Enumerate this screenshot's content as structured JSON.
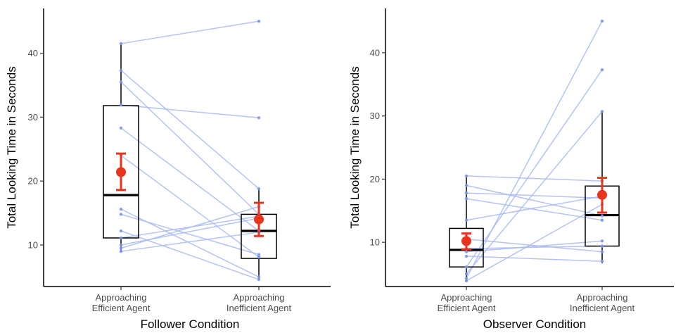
{
  "chart_data": [
    {
      "type": "box",
      "xlabel": "Follower Condition",
      "ylabel": "Total Looking Time in Seconds",
      "categories": [
        "Approaching\nEfficient Agent",
        "Approaching\nInefficient Agent"
      ],
      "ylim": [
        3.5,
        47
      ],
      "yticks": [
        10,
        20,
        30,
        40
      ],
      "grid": false,
      "boxes": [
        {
          "q1": 11.1,
          "median": 17.8,
          "q3": 31.8,
          "whisker_low": 8.9,
          "whisker_high": 41.5
        },
        {
          "q1": 7.9,
          "median": 12.2,
          "q3": 14.8,
          "whisker_low": 4.6,
          "whisker_high": 18.8
        }
      ],
      "means": [
        {
          "mean": 21.4,
          "ci_low": 18.6,
          "ci_high": 24.3
        },
        {
          "mean": 14.0,
          "ci_low": 11.4,
          "ci_high": 16.6
        }
      ],
      "paired_points": [
        [
          41.5,
          45.0
        ],
        [
          37.3,
          18.8
        ],
        [
          35.5,
          14.8
        ],
        [
          31.9,
          29.9
        ],
        [
          28.3,
          12.2
        ],
        [
          24.0,
          8.1
        ],
        [
          15.6,
          5.0
        ],
        [
          14.8,
          8.5
        ],
        [
          12.2,
          4.6
        ],
        [
          11.1,
          14.5
        ],
        [
          10.0,
          14.2
        ],
        [
          9.5,
          16.0
        ],
        [
          9.0,
          12.0
        ]
      ],
      "colors": {
        "lines": "#a7b9f4",
        "points": "#7c95ee",
        "mean": "#e8341c",
        "box": "#000000"
      }
    },
    {
      "type": "box",
      "xlabel": "Observer Condition",
      "ylabel": "Total Looking Time in Seconds",
      "categories": [
        "Approaching\nEfficient Agent",
        "Approaching\nInefficient Agent"
      ],
      "ylim": [
        3,
        47
      ],
      "yticks": [
        10,
        20,
        30,
        40
      ],
      "grid": false,
      "boxes": [
        {
          "q1": 6.1,
          "median": 8.8,
          "q3": 12.2,
          "whisker_low": 3.9,
          "whisker_high": 20.5
        },
        {
          "q1": 9.4,
          "median": 14.3,
          "q3": 18.9,
          "whisker_low": 6.7,
          "whisker_high": 30.7
        }
      ],
      "means": [
        {
          "mean": 10.2,
          "ci_low": 8.9,
          "ci_high": 11.4
        },
        {
          "mean": 17.5,
          "ci_low": 14.7,
          "ci_high": 20.2
        }
      ],
      "paired_points": [
        [
          20.5,
          19.7
        ],
        [
          19.0,
          14.2
        ],
        [
          17.8,
          17.0
        ],
        [
          16.9,
          13.5
        ],
        [
          13.5,
          17.3
        ],
        [
          10.5,
          8.5
        ],
        [
          9.0,
          9.4
        ],
        [
          8.5,
          10.2
        ],
        [
          7.8,
          7.0
        ],
        [
          6.1,
          37.3
        ],
        [
          5.0,
          30.7
        ],
        [
          4.3,
          45.0
        ],
        [
          3.9,
          16.0
        ]
      ],
      "colors": {
        "lines": "#a7b9f4",
        "points": "#7c95ee",
        "mean": "#e8341c",
        "box": "#000000"
      }
    }
  ]
}
